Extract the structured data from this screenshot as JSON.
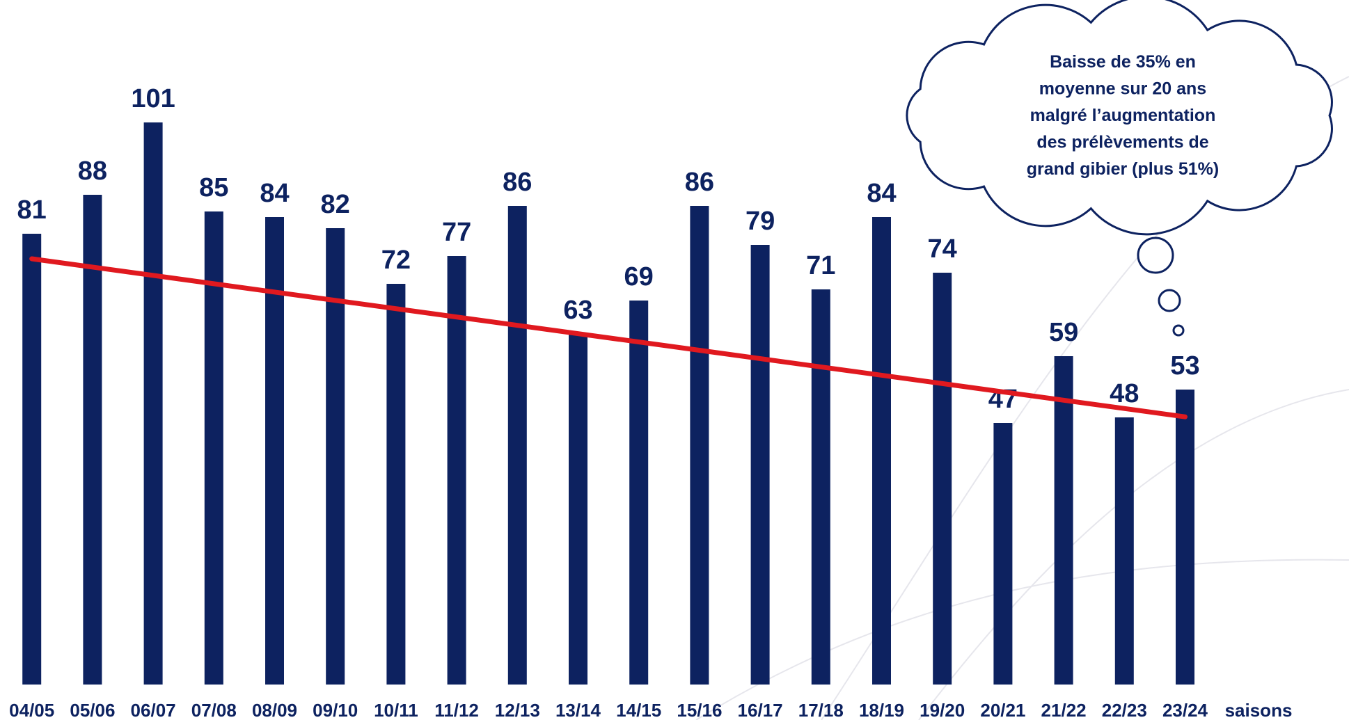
{
  "chart_data": {
    "type": "bar",
    "categories": [
      "04/05",
      "05/06",
      "06/07",
      "07/08",
      "08/09",
      "09/10",
      "10/11",
      "11/12",
      "12/13",
      "13/14",
      "14/15",
      "15/16",
      "16/17",
      "17/18",
      "18/19",
      "19/20",
      "20/21",
      "21/22",
      "22/23",
      "23/24"
    ],
    "values": [
      81,
      88,
      101,
      85,
      84,
      82,
      72,
      77,
      86,
      63,
      69,
      86,
      79,
      71,
      84,
      74,
      47,
      59,
      48,
      53
    ],
    "color": "#0d2260",
    "x_label": "saisons",
    "trend": {
      "color": "#e0191f",
      "values": [
        76.5,
        48.1
      ]
    },
    "annotation": [
      "Baisse de 35% en",
      "moyenne sur 20 ans",
      "malgré l’augmentation",
      "des prélèvements de",
      "grand gibier (plus 51%)"
    ]
  }
}
